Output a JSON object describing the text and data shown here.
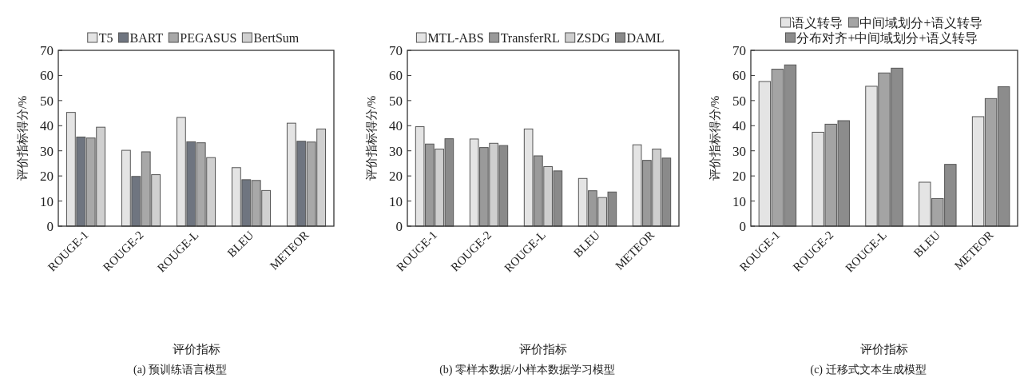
{
  "chart_data": [
    {
      "type": "bar",
      "xlabel": "评价指标",
      "ylabel": "评价指标得分/%",
      "annotations": [
        "(a) 预训练语言模型"
      ],
      "categories": [
        "ROUGE-1",
        "ROUGE-2",
        "ROUGE-L",
        "BLEU",
        "METEOR"
      ],
      "ylim": [
        0,
        70
      ],
      "yticks": [
        0,
        10,
        20,
        30,
        40,
        50,
        60,
        70
      ],
      "grid": false,
      "legend": "top",
      "series": [
        {
          "name": "T5",
          "color": "#e4e4e4",
          "values": [
            45.3,
            30.2,
            43.3,
            23.3,
            41.0
          ]
        },
        {
          "name": "BART",
          "color": "#6f7580",
          "values": [
            35.5,
            19.8,
            33.6,
            18.5,
            33.8
          ]
        },
        {
          "name": "PEGASUS",
          "color": "#a8a8a8",
          "values": [
            35.1,
            29.6,
            33.2,
            18.2,
            33.5
          ]
        },
        {
          "name": "BertSum",
          "color": "#d0d0d0",
          "values": [
            39.4,
            20.5,
            27.3,
            14.2,
            38.7
          ]
        }
      ]
    },
    {
      "type": "bar",
      "xlabel": "评价指标",
      "ylabel": "评价指标得分/%",
      "annotations": [
        "(b) 零样本数据/小样本数据学习模型"
      ],
      "categories": [
        "ROUGE-1",
        "ROUGE-2",
        "ROUGE-L",
        "BLEU",
        "METEOR"
      ],
      "ylim": [
        0,
        70
      ],
      "yticks": [
        0,
        10,
        20,
        30,
        40,
        50,
        60,
        70
      ],
      "grid": false,
      "legend": "top",
      "series": [
        {
          "name": "MTL-ABS",
          "color": "#e4e4e4",
          "values": [
            39.6,
            34.7,
            38.7,
            19.0,
            32.4
          ]
        },
        {
          "name": "TransferRL",
          "color": "#9a9a9a",
          "values": [
            32.7,
            31.3,
            28.0,
            14.1,
            26.2
          ]
        },
        {
          "name": "ZSDG",
          "color": "#cfcfcf",
          "values": [
            30.7,
            33.0,
            23.7,
            11.4,
            30.7
          ]
        },
        {
          "name": "DAML",
          "color": "#8a8a8a",
          "values": [
            34.8,
            32.1,
            22.0,
            13.6,
            27.1
          ]
        }
      ]
    },
    {
      "type": "bar",
      "xlabel": "评价指标",
      "ylabel": "评价指标得分/%",
      "annotations": [
        "(c) 迁移式文本生成模型"
      ],
      "categories": [
        "ROUGE-1",
        "ROUGE-2",
        "ROUGE-L",
        "BLEU",
        "METEOR"
      ],
      "ylim": [
        0,
        70
      ],
      "yticks": [
        0,
        10,
        20,
        30,
        40,
        50,
        60,
        70
      ],
      "grid": false,
      "legend": "top",
      "series": [
        {
          "name": "语义转导",
          "color": "#e4e4e4",
          "values": [
            57.6,
            37.4,
            55.7,
            17.5,
            43.6
          ]
        },
        {
          "name": "中间域划分+语义转导",
          "color": "#a4a4a4",
          "values": [
            62.5,
            40.6,
            61.0,
            11.0,
            50.8
          ]
        },
        {
          "name": "分布对齐+中间域划分+语义转导",
          "color": "#8c8c8c",
          "values": [
            64.2,
            42.0,
            62.9,
            24.6,
            55.5
          ]
        }
      ]
    }
  ]
}
